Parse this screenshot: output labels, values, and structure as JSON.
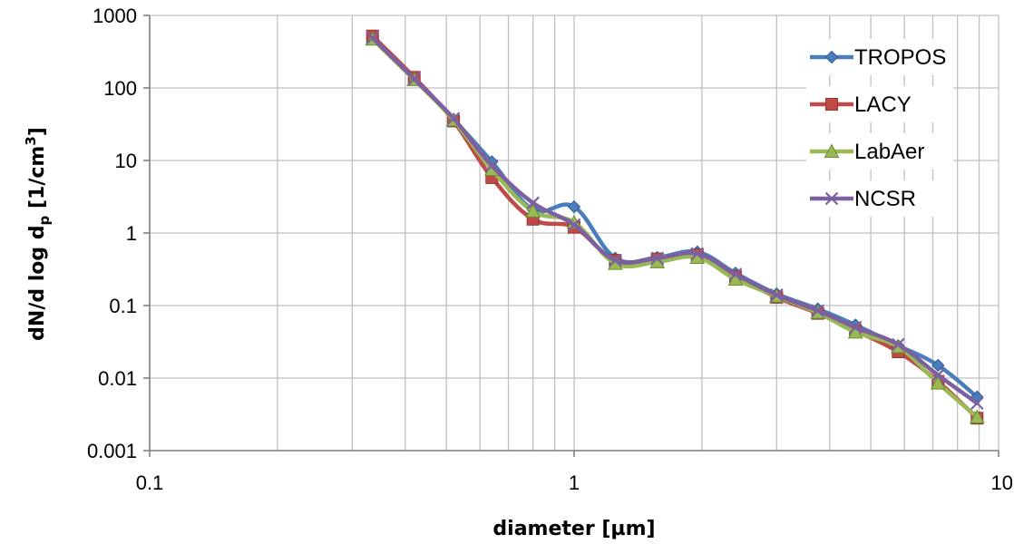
{
  "chart_data": {
    "type": "line",
    "xlabel": "diameter [µm]",
    "ylabel_parts": [
      "dN/d log d",
      "p",
      "  [1/cm",
      "3",
      "]"
    ],
    "x_scale": "log",
    "y_scale": "log",
    "xlim": [
      0.1,
      10
    ],
    "ylim": [
      0.001,
      1000
    ],
    "x_ticks": [
      0.1,
      1,
      10
    ],
    "x_tick_labels": [
      "0.1",
      "1",
      "10"
    ],
    "y_ticks": [
      0.001,
      0.01,
      0.1,
      1,
      10,
      100,
      1000
    ],
    "y_tick_labels": [
      "0.001",
      "0.01",
      "0.1",
      "1",
      "10",
      "100",
      "1000"
    ],
    "grid": true,
    "legend_position": "top-right",
    "x": [
      0.335,
      0.42,
      0.52,
      0.64,
      0.8,
      1.0,
      1.25,
      1.57,
      1.95,
      2.4,
      3.0,
      3.75,
      4.6,
      5.8,
      7.2,
      8.9
    ],
    "series": [
      {
        "name": "TROPOS",
        "color": "#4a7ebb",
        "marker": "diamond",
        "values": [
          480,
          135,
          37,
          9.6,
          2.1,
          2.3,
          0.45,
          0.46,
          0.55,
          0.28,
          0.145,
          0.09,
          0.054,
          0.028,
          0.015,
          0.0055
        ]
      },
      {
        "name": "LACY",
        "color": "#be4b48",
        "marker": "square",
        "values": [
          520,
          140,
          35,
          5.8,
          1.55,
          1.2,
          0.42,
          0.44,
          0.5,
          0.25,
          0.13,
          0.078,
          0.045,
          0.023,
          0.009,
          0.0028
        ]
      },
      {
        "name": "LabAer",
        "color": "#98b954",
        "marker": "triangle",
        "values": [
          470,
          130,
          36,
          7.5,
          2.0,
          1.4,
          0.38,
          0.4,
          0.46,
          0.23,
          0.135,
          0.08,
          0.043,
          0.027,
          0.0085,
          0.0029
        ]
      },
      {
        "name": "NCSR",
        "color": "#7d60a0",
        "marker": "x",
        "values": [
          490,
          133,
          38,
          8.5,
          2.6,
          1.3,
          0.42,
          0.45,
          0.52,
          0.27,
          0.14,
          0.085,
          0.05,
          0.029,
          0.011,
          0.0045
        ]
      }
    ]
  }
}
